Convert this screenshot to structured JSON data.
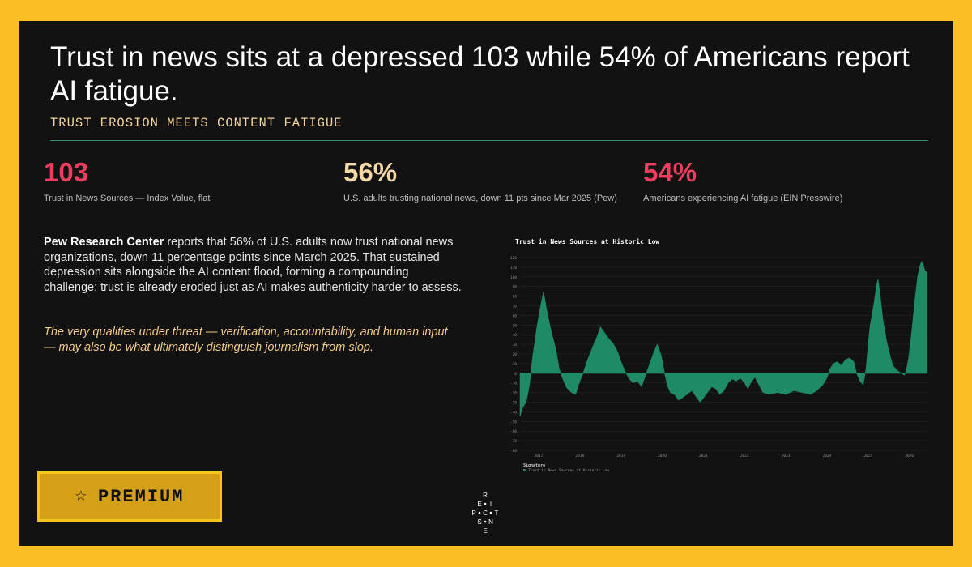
{
  "headline": "Trust in news sits at a depressed 103 while 54% of Americans report AI fatigue.",
  "kicker": "TRUST EROSION MEETS CONTENT FATIGUE",
  "stats": [
    {
      "value": "103",
      "label": "Trust in News Sources — Index Value, flat",
      "color": "#ee3d5f"
    },
    {
      "value": "56%",
      "label": "U.S. adults trusting national news, down 11 pts since Mar 2025 (Pew)",
      "color": "#f6d9a6"
    },
    {
      "value": "54%",
      "label": "Americans experiencing AI fatigue (EIN Presswire)",
      "color": "#ee3d5f"
    }
  ],
  "body": {
    "source": "Pew Research Center",
    "text": " reports that 56% of U.S. adults now trust national news organizations, down 11 percentage points since March 2025. That sustained depression sits alongside the AI content flood, forming a compounding challenge: trust is already eroded just as AI makes authenticity harder to assess.",
    "quote": "The very qualities under threat — verification, accountability, and human input — may also be what ultimately distinguish journalism from slop."
  },
  "premium": {
    "label": "PREMIUM",
    "icon": "star-icon"
  },
  "logo_letters": [
    "R",
    "E",
    "I",
    "P",
    "C",
    "T",
    "S",
    "N",
    "E"
  ],
  "colors": {
    "accent": "#fbbf24",
    "area": "#1f8a66",
    "background": "#121212"
  },
  "chart_data": {
    "type": "area",
    "title": "Trust in News Sources at Historic Low",
    "legend_title": "Signature",
    "series": [
      {
        "name": "Trust in News Sources at Historic Low",
        "points": [
          [
            2016.55,
            -45
          ],
          [
            2016.62,
            -35
          ],
          [
            2016.7,
            -30
          ],
          [
            2016.78,
            -12
          ],
          [
            2016.85,
            15
          ],
          [
            2016.95,
            45
          ],
          [
            2017.05,
            70
          ],
          [
            2017.12,
            85
          ],
          [
            2017.2,
            65
          ],
          [
            2017.3,
            45
          ],
          [
            2017.42,
            25
          ],
          [
            2017.5,
            5
          ],
          [
            2017.58,
            -5
          ],
          [
            2017.68,
            -15
          ],
          [
            2017.8,
            -20
          ],
          [
            2017.9,
            -22
          ],
          [
            2017.97,
            -12
          ],
          [
            2018.08,
            0
          ],
          [
            2018.2,
            15
          ],
          [
            2018.32,
            28
          ],
          [
            2018.42,
            38
          ],
          [
            2018.5,
            48
          ],
          [
            2018.6,
            42
          ],
          [
            2018.72,
            35
          ],
          [
            2018.82,
            30
          ],
          [
            2018.92,
            22
          ],
          [
            2019.02,
            10
          ],
          [
            2019.1,
            2
          ],
          [
            2019.2,
            -6
          ],
          [
            2019.3,
            -10
          ],
          [
            2019.4,
            -8
          ],
          [
            2019.5,
            -14
          ],
          [
            2019.6,
            -2
          ],
          [
            2019.7,
            10
          ],
          [
            2019.8,
            22
          ],
          [
            2019.88,
            30
          ],
          [
            2019.98,
            18
          ],
          [
            2020.05,
            2
          ],
          [
            2020.12,
            -12
          ],
          [
            2020.2,
            -20
          ],
          [
            2020.3,
            -22
          ],
          [
            2020.4,
            -28
          ],
          [
            2020.5,
            -25
          ],
          [
            2020.6,
            -22
          ],
          [
            2020.72,
            -18
          ],
          [
            2020.82,
            -24
          ],
          [
            2020.92,
            -30
          ],
          [
            2021.0,
            -26
          ],
          [
            2021.1,
            -20
          ],
          [
            2021.2,
            -14
          ],
          [
            2021.3,
            -16
          ],
          [
            2021.4,
            -22
          ],
          [
            2021.5,
            -18
          ],
          [
            2021.6,
            -10
          ],
          [
            2021.7,
            -6
          ],
          [
            2021.8,
            -8
          ],
          [
            2021.9,
            -5
          ],
          [
            2022.0,
            -10
          ],
          [
            2022.08,
            -16
          ],
          [
            2022.15,
            -10
          ],
          [
            2022.25,
            -4
          ],
          [
            2022.35,
            -12
          ],
          [
            2022.45,
            -20
          ],
          [
            2022.6,
            -22
          ],
          [
            2022.8,
            -20
          ],
          [
            2023.0,
            -22
          ],
          [
            2023.2,
            -18
          ],
          [
            2023.4,
            -20
          ],
          [
            2023.6,
            -22
          ],
          [
            2023.75,
            -18
          ],
          [
            2023.9,
            -12
          ],
          [
            2024.0,
            -5
          ],
          [
            2024.08,
            5
          ],
          [
            2024.16,
            10
          ],
          [
            2024.25,
            12
          ],
          [
            2024.35,
            8
          ],
          [
            2024.45,
            14
          ],
          [
            2024.55,
            16
          ],
          [
            2024.65,
            12
          ],
          [
            2024.72,
            0
          ],
          [
            2024.8,
            -8
          ],
          [
            2024.88,
            -12
          ],
          [
            2024.95,
            5
          ],
          [
            2025.0,
            30
          ],
          [
            2025.05,
            50
          ],
          [
            2025.1,
            62
          ],
          [
            2025.15,
            75
          ],
          [
            2025.2,
            90
          ],
          [
            2025.24,
            98
          ],
          [
            2025.3,
            78
          ],
          [
            2025.36,
            55
          ],
          [
            2025.44,
            35
          ],
          [
            2025.52,
            20
          ],
          [
            2025.6,
            8
          ],
          [
            2025.7,
            3
          ],
          [
            2025.8,
            0
          ],
          [
            2025.88,
            -2
          ],
          [
            2025.92,
            2
          ],
          [
            2025.98,
            15
          ],
          [
            2026.05,
            40
          ],
          [
            2026.12,
            70
          ],
          [
            2026.2,
            100
          ],
          [
            2026.26,
            112
          ],
          [
            2026.3,
            116
          ],
          [
            2026.34,
            112
          ],
          [
            2026.38,
            106
          ],
          [
            2026.42,
            105
          ]
        ]
      }
    ],
    "x_ticks": [
      "2017",
      "2018",
      "2019",
      "2020",
      "2021",
      "2022",
      "2023",
      "2024",
      "2025",
      "2026"
    ],
    "xlim": [
      2016.55,
      2026.42
    ],
    "ylim": [
      -80,
      120
    ],
    "y_ticks": [
      120,
      110,
      100,
      90,
      80,
      70,
      60,
      50,
      40,
      30,
      20,
      10,
      0,
      -10,
      -20,
      -30,
      -40,
      -50,
      -60,
      -70,
      -80
    ],
    "grid": true,
    "legend_position": "bottom-left"
  }
}
